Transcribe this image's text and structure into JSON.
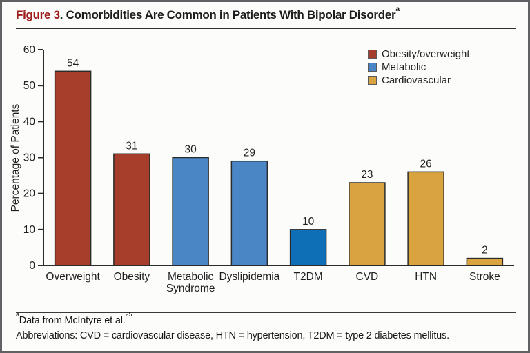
{
  "header": {
    "figure_label": "Figure 3",
    "separator": ". ",
    "title": "Comorbidities Are Common in Patients With Bipolar Disorder",
    "superscript": "a",
    "accent_color": "#9e1c1c"
  },
  "chart_data": {
    "type": "bar",
    "title": "Figure 3. Comorbidities Are Common in Patients With Bipolar Disorder",
    "xlabel": "",
    "ylabel": "Percentage of Patients",
    "ylim": [
      0,
      60
    ],
    "yticks": [
      0,
      10,
      20,
      30,
      40,
      50,
      60
    ],
    "grid": false,
    "legend_position": "top-right",
    "categories": [
      "Overweight",
      "Obesity",
      "Metabolic\nSyndrome",
      "Dyslipidemia",
      "T2DM",
      "CVD",
      "HTN",
      "Stroke"
    ],
    "values": [
      54,
      31,
      30,
      29,
      10,
      23,
      26,
      2
    ],
    "bar_groups": [
      "Obesity/overweight",
      "Obesity/overweight",
      "Metabolic",
      "Metabolic",
      "Metabolic",
      "Cardiovascular",
      "Cardiovascular",
      "Cardiovascular"
    ],
    "bar_colors": [
      "#a63e2b",
      "#a63e2b",
      "#4a86c6",
      "#4a86c6",
      "#0e6fb6",
      "#d9a440",
      "#d9a440",
      "#d9a440"
    ],
    "bar_border_color": "#2b2b2b",
    "axis_color": "#2b2b2b",
    "legend": [
      {
        "label": "Obesity/overweight",
        "color": "#a63e2b"
      },
      {
        "label": "Metabolic",
        "color": "#4a86c6"
      },
      {
        "label": "Cardiovascular",
        "color": "#d9a440"
      }
    ]
  },
  "footer": {
    "footnote_superscript": "a",
    "footnote_text": "Data from McIntyre et al.",
    "footnote_reference": "25",
    "abbreviations": "Abbreviations: CVD = cardiovascular disease, HTN = hypertension, T2DM = type 2 diabetes mellitus."
  }
}
